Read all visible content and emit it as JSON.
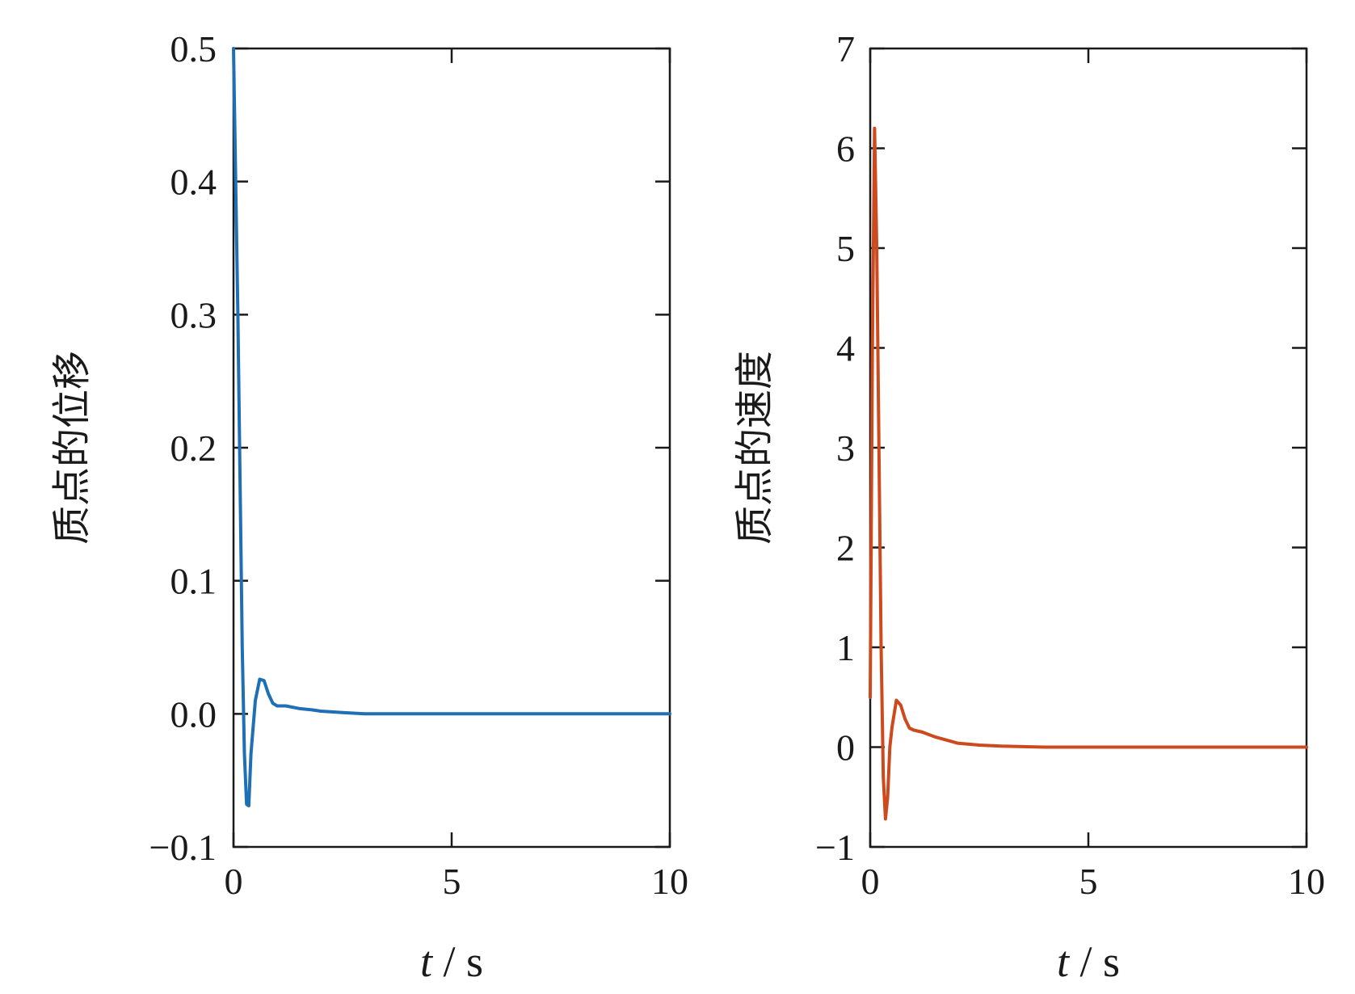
{
  "chart_data": [
    {
      "type": "line",
      "ylabel": "质点的位移",
      "xlabel_var": "t",
      "xlabel_unit": " / s",
      "xlim": [
        0,
        10
      ],
      "ylim": [
        -0.1,
        0.5
      ],
      "xticks": [
        "0",
        "5",
        "10"
      ],
      "xtick_values": [
        0,
        5,
        10
      ],
      "yticks": [
        "−0.1",
        "0.0",
        "0.1",
        "0.2",
        "0.3",
        "0.4",
        "0.5"
      ],
      "ytick_values": [
        -0.1,
        0.0,
        0.1,
        0.2,
        0.3,
        0.4,
        0.5
      ],
      "grid": false,
      "series": [
        {
          "color": "#1f6fb4",
          "x": [
            0,
            0.1,
            0.2,
            0.25,
            0.3,
            0.35,
            0.4,
            0.5,
            0.6,
            0.7,
            0.8,
            0.9,
            1.0,
            1.2,
            1.5,
            1.8,
            2.0,
            2.5,
            3.0,
            4.0,
            5.0,
            6.0,
            7.0,
            8.0,
            9.0,
            10.0
          ],
          "y": [
            0.5,
            0.3,
            0.05,
            -0.03,
            -0.068,
            -0.069,
            -0.03,
            0.01,
            0.026,
            0.025,
            0.015,
            0.008,
            0.006,
            0.006,
            0.004,
            0.003,
            0.002,
            0.001,
            0.0,
            0.0,
            0.0,
            0.0,
            0.0,
            0.0,
            0.0,
            0.0
          ]
        }
      ]
    },
    {
      "type": "line",
      "ylabel": "质点的速度",
      "xlabel_var": "t",
      "xlabel_unit": " / s",
      "xlim": [
        0,
        10
      ],
      "ylim": [
        -1,
        7
      ],
      "xticks": [
        "0",
        "5",
        "10"
      ],
      "xtick_values": [
        0,
        5,
        10
      ],
      "yticks": [
        "−1",
        "0",
        "1",
        "2",
        "3",
        "4",
        "5",
        "6",
        "7"
      ],
      "ytick_values": [
        -1,
        0,
        1,
        2,
        3,
        4,
        5,
        6,
        7
      ],
      "grid": false,
      "series": [
        {
          "color": "#cc4a1e",
          "x": [
            0,
            0.05,
            0.1,
            0.15,
            0.2,
            0.25,
            0.3,
            0.35,
            0.4,
            0.45,
            0.5,
            0.6,
            0.7,
            0.8,
            0.9,
            1.0,
            1.2,
            1.5,
            2.0,
            2.5,
            3.0,
            4.0,
            5.0,
            6.0,
            7.0,
            8.0,
            9.0,
            10.0
          ],
          "y": [
            0.5,
            4.0,
            6.2,
            5.0,
            3.0,
            1.0,
            -0.3,
            -0.72,
            -0.5,
            0.0,
            0.2,
            0.47,
            0.42,
            0.28,
            0.19,
            0.17,
            0.15,
            0.1,
            0.04,
            0.02,
            0.01,
            0.0,
            0.0,
            0.0,
            0.0,
            0.0,
            0.0,
            0.0
          ]
        }
      ]
    }
  ]
}
